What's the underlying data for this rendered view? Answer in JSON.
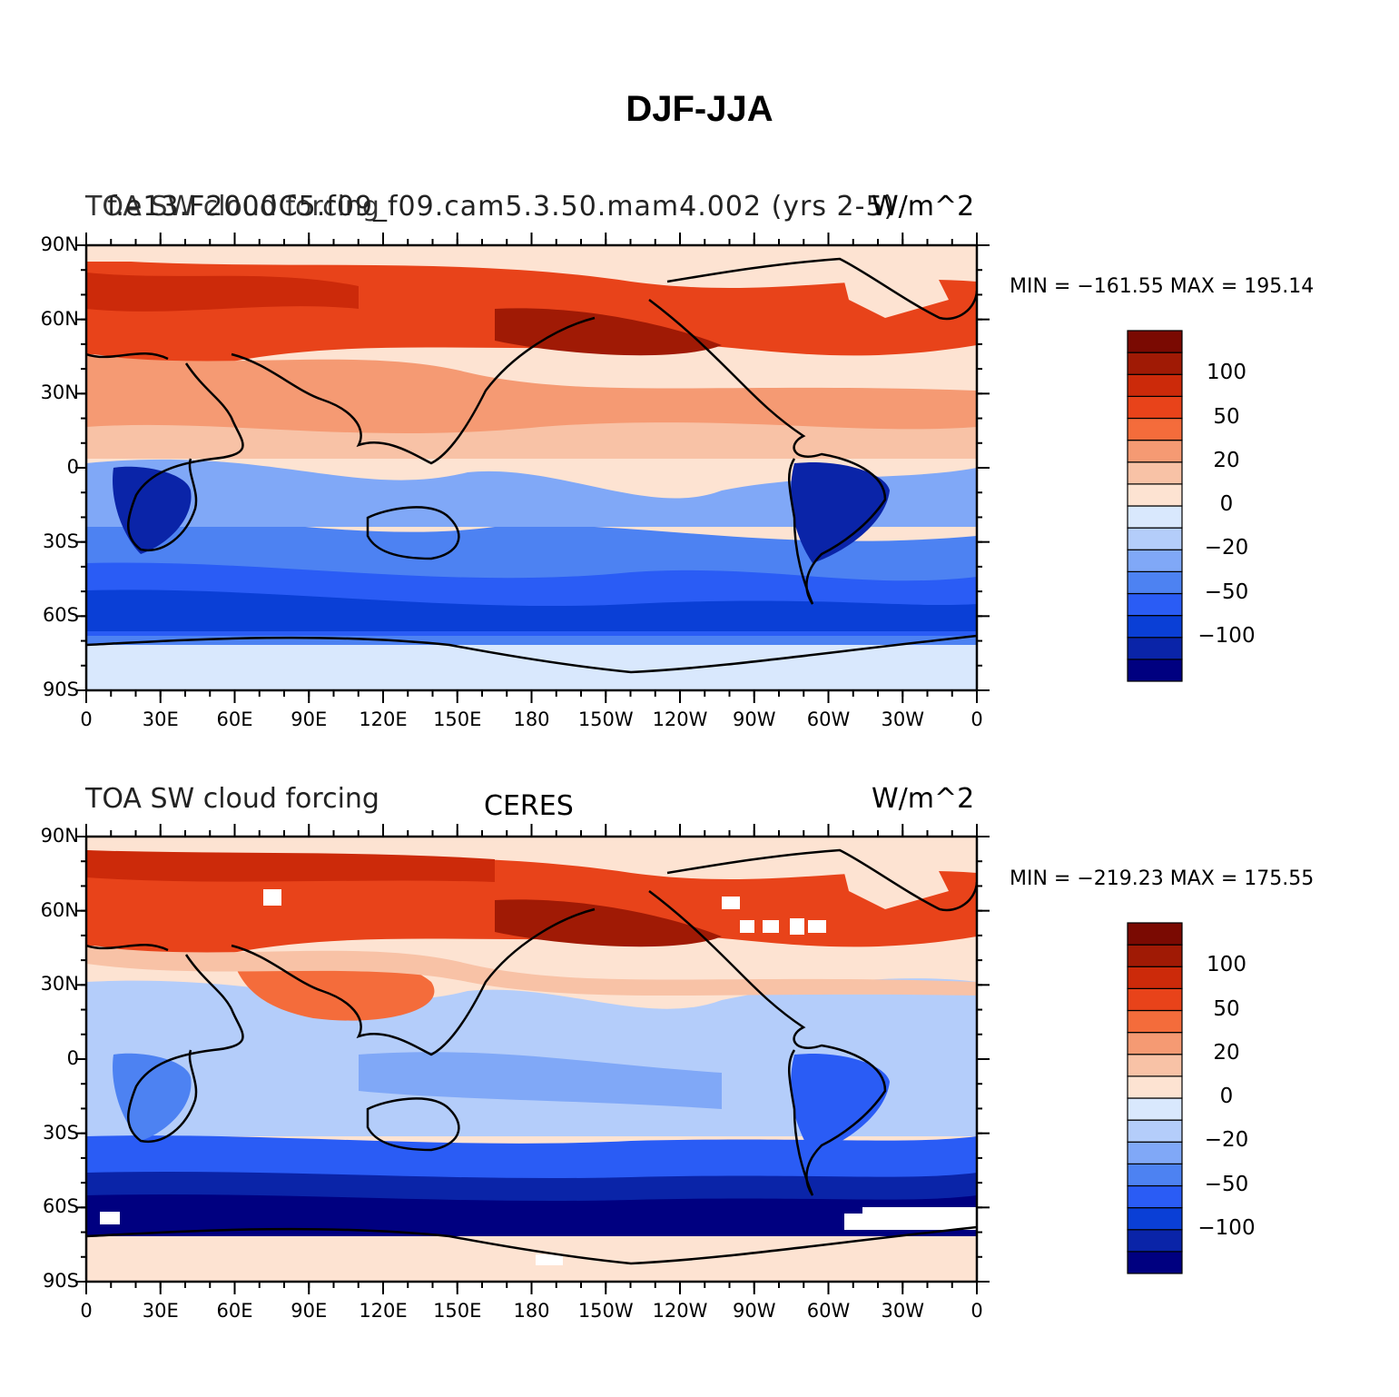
{
  "figure": {
    "title": "DJF-JJA"
  },
  "axes": {
    "lat_ticks": [
      "90N",
      "60N",
      "30N",
      "0",
      "30S",
      "60S",
      "90S"
    ],
    "lon_ticks": [
      "0",
      "30E",
      "60E",
      "90E",
      "120E",
      "150E",
      "180",
      "150W",
      "120W",
      "90W",
      "60W",
      "30W",
      "0"
    ]
  },
  "colorbar": {
    "colors": [
      "#000080",
      "#0a24a8",
      "#0a3fd6",
      "#2a5cf5",
      "#4d82f2",
      "#80a8f7",
      "#b4cdfa",
      "#d9e8fd",
      "#fde3d2",
      "#f8c2a6",
      "#f59a73",
      "#f46c3b",
      "#e8431a",
      "#cc2a0a",
      "#a01a05",
      "#7a0a02"
    ],
    "labels": [
      "100",
      "50",
      "20",
      "0",
      "−20",
      "−50",
      "−100"
    ]
  },
  "panels": [
    {
      "left": "TOA SW cloud forcing",
      "left_overlap": "f.e13.F2000C5.f09_f09.cam5.3.50.mam4.002 (yrs 2-5)",
      "center": "",
      "right": "W/m^2",
      "min_max": "MIN = −161.55 MAX = 195.14"
    },
    {
      "left": "TOA SW cloud forcing",
      "center": "CERES",
      "right": "W/m^2",
      "min_max": "MIN = −219.23 MAX = 175.55"
    }
  ]
}
